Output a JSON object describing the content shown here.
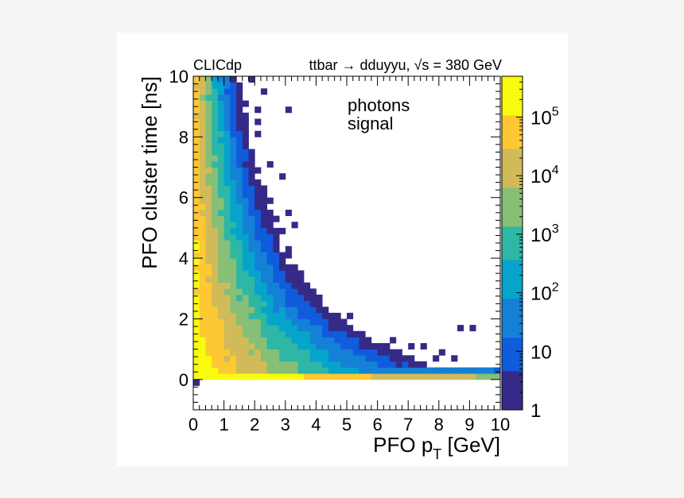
{
  "chart_data": {
    "type": "heatmap",
    "header_left": "CLICdp",
    "header_right": "ttbar → dduyyu, √s = 380 GeV",
    "labels": [
      "photons",
      "signal"
    ],
    "xlabel": "PFO p_T [GeV]",
    "xlabel_main": "PFO p",
    "xlabel_sub": "T",
    "xlabel_unit": " [GeV]",
    "ylabel": "PFO cluster time [ns]",
    "xlim": [
      0,
      10
    ],
    "ylim": [
      -1,
      10
    ],
    "x_bin_width": 0.2,
    "y_bin_width": 0.2,
    "x_tick_labels": [
      "0",
      "1",
      "2",
      "3",
      "4",
      "5",
      "6",
      "7",
      "8",
      "9",
      "10"
    ],
    "y_tick_labels": [
      "0",
      "2",
      "4",
      "6",
      "8",
      "10"
    ],
    "y_ticks": [
      0,
      2,
      4,
      6,
      8,
      10
    ],
    "z_scale": "log",
    "zlim": [
      1,
      500000
    ],
    "z_tick_labels": [
      {
        "value": 1,
        "base": "1",
        "exp": ""
      },
      {
        "value": 10,
        "base": "10",
        "exp": ""
      },
      {
        "value": 100,
        "base": "10",
        "exp": "2"
      },
      {
        "value": 1000,
        "base": "10",
        "exp": "3"
      },
      {
        "value": 10000,
        "base": "10",
        "exp": "4"
      },
      {
        "value": 100000,
        "base": "10",
        "exp": "5"
      }
    ],
    "palette": [
      "#352a87",
      "#0f5cdd",
      "#1481d6",
      "#06a4ca",
      "#2eb7a4",
      "#87bf77",
      "#d1bb59",
      "#fec832",
      "#f9fb0e"
    ],
    "sparse_bins": [
      [
        0.1,
        -0.1
      ],
      [
        1.1,
        9.9
      ],
      [
        1.9,
        9.9
      ],
      [
        1.5,
        9.7
      ],
      [
        2.3,
        9.5
      ],
      [
        1.7,
        9.1
      ],
      [
        2.1,
        8.9
      ],
      [
        2.1,
        8.5
      ],
      [
        3.1,
        8.9
      ],
      [
        2.1,
        8.1
      ],
      [
        1.5,
        7.7
      ],
      [
        2.5,
        7.1
      ],
      [
        2.1,
        6.9
      ],
      [
        2.9,
        6.7
      ],
      [
        2.3,
        6.3
      ],
      [
        2.1,
        6.1
      ],
      [
        2.5,
        5.9
      ],
      [
        3.1,
        5.5
      ],
      [
        2.7,
        5.3
      ],
      [
        3.3,
        5.1
      ],
      [
        2.9,
        4.9
      ],
      [
        2.7,
        4.5
      ],
      [
        3.1,
        4.3
      ],
      [
        2.9,
        3.9
      ],
      [
        2.3,
        3.7
      ],
      [
        3.1,
        3.5
      ],
      [
        2.7,
        3.1
      ],
      [
        2.9,
        3.3
      ],
      [
        3.1,
        3.1
      ],
      [
        3.3,
        2.9
      ],
      [
        3.7,
        2.7
      ],
      [
        2.9,
        2.5
      ],
      [
        3.5,
        2.3
      ],
      [
        3.3,
        1.9
      ],
      [
        3.7,
        1.7
      ],
      [
        4.1,
        1.9
      ],
      [
        4.5,
        1.7
      ],
      [
        5.1,
        2.1
      ],
      [
        4.7,
        1.5
      ],
      [
        5.5,
        1.3
      ],
      [
        6.5,
        1.3
      ],
      [
        7.1,
        1.1
      ],
      [
        7.5,
        1.1
      ],
      [
        8.7,
        1.7
      ],
      [
        9.1,
        1.7
      ],
      [
        8.1,
        0.9
      ],
      [
        8.5,
        0.7
      ],
      [
        7.9,
        0.7
      ],
      [
        6.9,
        0.7
      ],
      [
        6.3,
        0.9
      ],
      [
        5.9,
        0.7
      ],
      [
        5.3,
        0.9
      ],
      [
        5.7,
        0.5
      ],
      [
        4.9,
        1.3
      ],
      [
        4.3,
        1.1
      ],
      [
        6.1,
        0.5
      ],
      [
        7.3,
        0.5
      ]
    ]
  }
}
